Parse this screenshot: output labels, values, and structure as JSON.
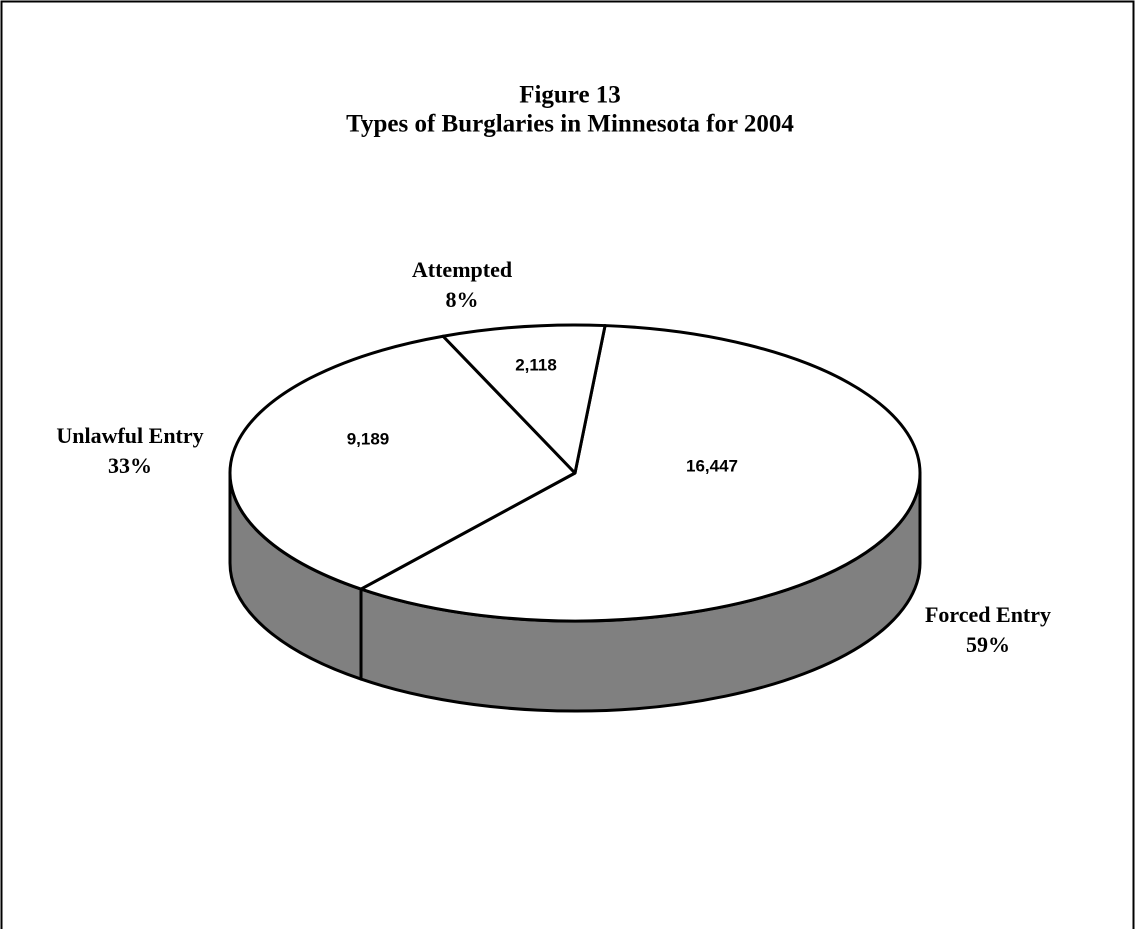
{
  "chart_data": {
    "type": "pie",
    "title": "Figure 13",
    "subtitle": "Types of Burglaries in Minnesota for 2004",
    "categories": [
      "Forced Entry",
      "Unlawful Entry",
      "Attempted"
    ],
    "values": [
      16447,
      9189,
      2118
    ],
    "value_labels": [
      "16,447",
      "9,189",
      "2,118"
    ],
    "percent_labels": [
      "59%",
      "33%",
      "8%"
    ],
    "color": "#ffffff",
    "side_color": "#808080"
  }
}
